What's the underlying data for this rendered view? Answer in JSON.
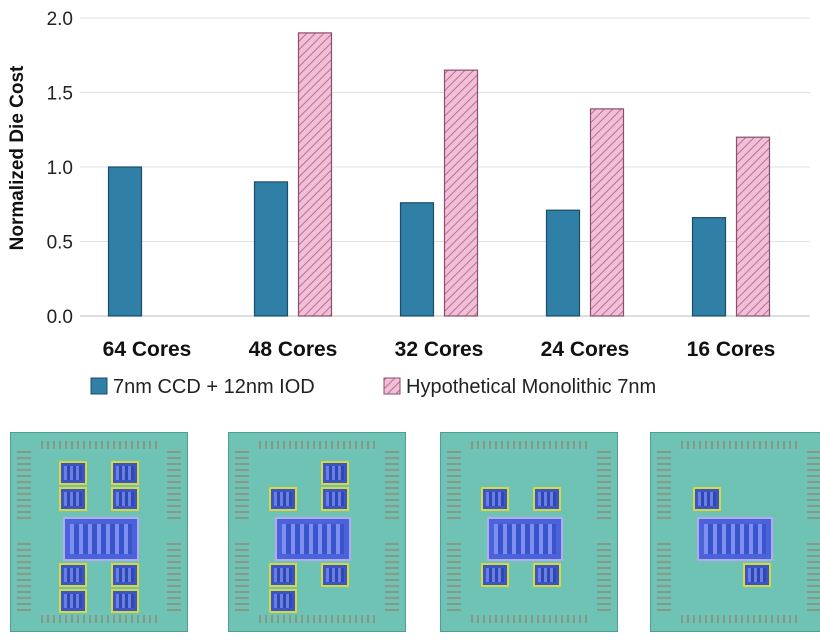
{
  "chart_data": {
    "type": "bar",
    "title": "",
    "xlabel": "",
    "ylabel": "Normalized Die Cost",
    "ylim": [
      0,
      2.0
    ],
    "yticks": [
      "0.0",
      "0.5",
      "1.0",
      "1.5",
      "2.0"
    ],
    "grid": true,
    "legend_position": "bottom",
    "categories": [
      "64 Cores",
      "48 Cores",
      "32 Cores",
      "24 Cores",
      "16 Cores"
    ],
    "series": [
      {
        "name": "7nm CCD + 12nm IOD",
        "color": "#2f7fa6",
        "pattern": "solid",
        "values": [
          1.0,
          0.9,
          0.76,
          0.71,
          0.66
        ]
      },
      {
        "name": "Hypothetical Monolithic 7nm",
        "color": "#e9a7c5",
        "pattern": "hatched",
        "values": [
          null,
          1.9,
          1.65,
          1.39,
          1.2
        ]
      }
    ]
  },
  "packages": [
    {
      "name": "64 Cores package",
      "ccd_count": 8
    },
    {
      "name": "48 Cores package",
      "ccd_count": 6
    },
    {
      "name": "32 Cores package",
      "ccd_count": 4
    },
    {
      "name": "16 Cores package",
      "ccd_count": 2
    }
  ]
}
